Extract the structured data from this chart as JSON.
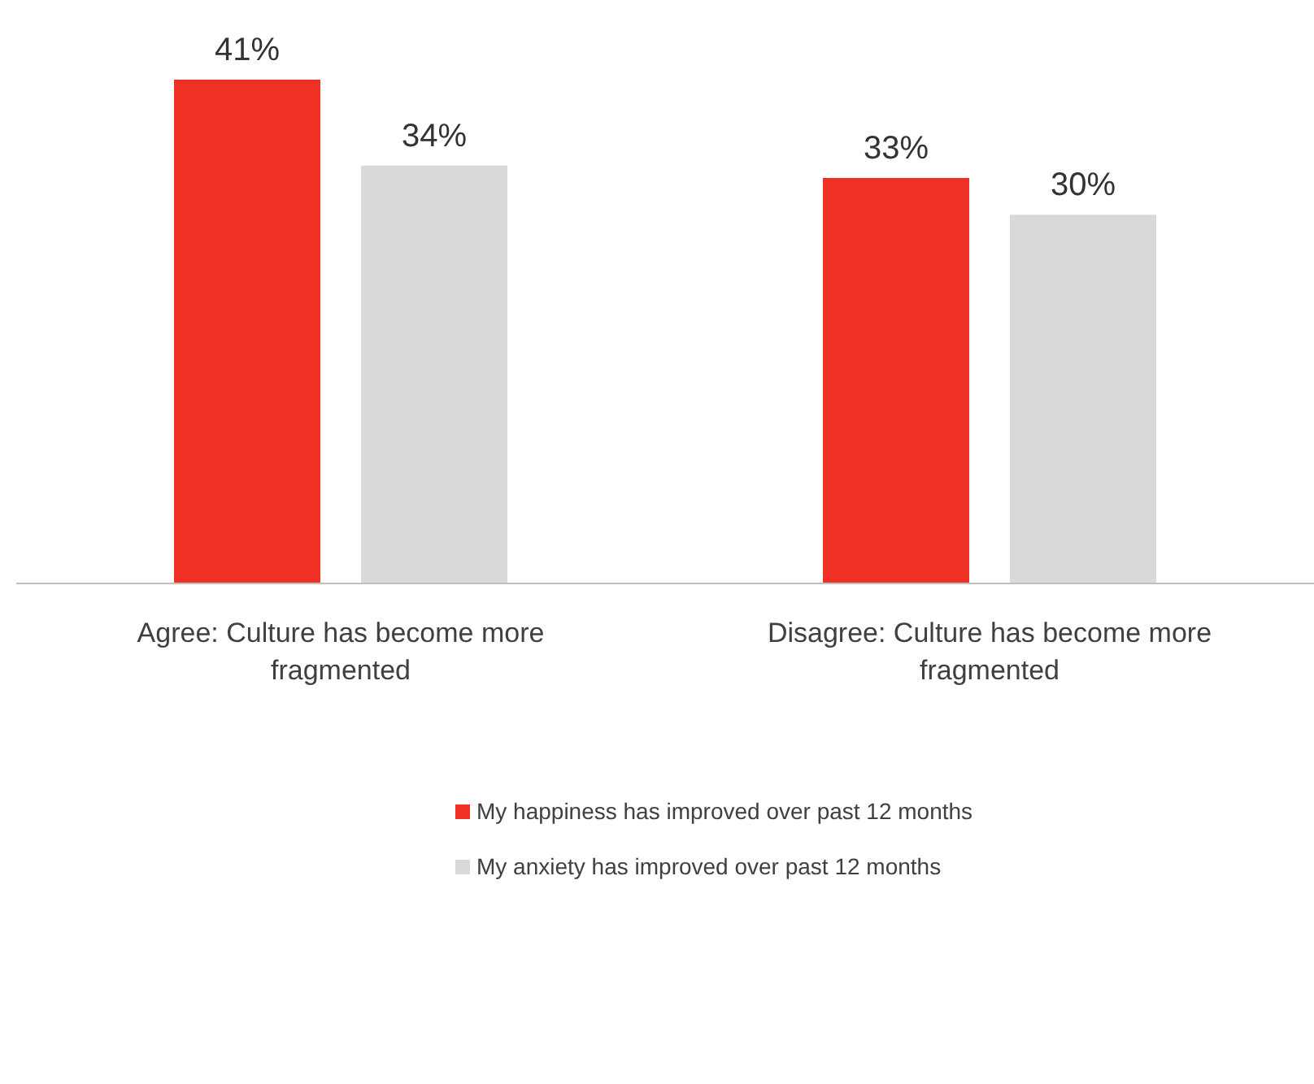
{
  "chart_data": {
    "type": "bar",
    "categories": [
      "Agree: Culture has become more fragmented",
      "Disagree: Culture has become more fragmented"
    ],
    "series": [
      {
        "name": "My happiness has improved over past 12 months",
        "color": "#ee3124",
        "values": [
          41,
          33
        ],
        "value_labels": [
          "41%",
          "33%"
        ]
      },
      {
        "name": "My anxiety has improved over past 12 months",
        "color": "#d9d9d9",
        "values": [
          34,
          30
        ],
        "value_labels": [
          "34%",
          "30%"
        ]
      }
    ],
    "legend": "bottom"
  }
}
